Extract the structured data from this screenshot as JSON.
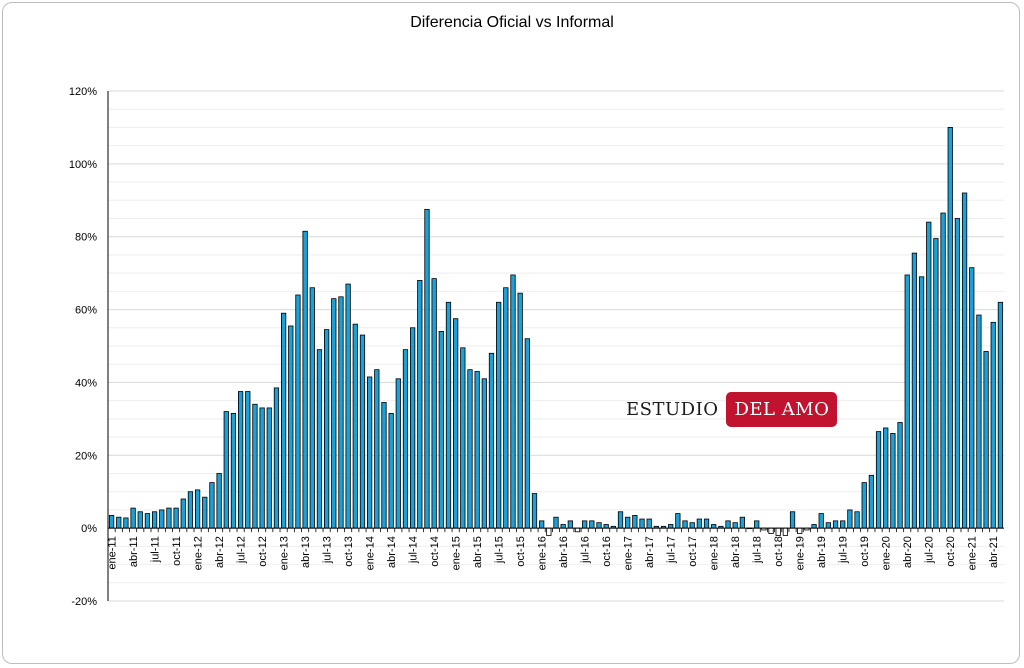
{
  "chart_data": {
    "type": "bar",
    "title": "Diferencia Oficial vs Informal",
    "bar_color": "#1ba0d8",
    "negative_bar_color": "#ffffff",
    "ylim": [
      -20,
      120
    ],
    "yticks": [
      "-20%",
      "0%",
      "20%",
      "40%",
      "60%",
      "80%",
      "100%",
      "120%"
    ],
    "grid": true,
    "start": "ene-11",
    "tick_labels": [
      "ene-11",
      "abr-11",
      "jul-11",
      "oct-11",
      "ene-12",
      "abr-12",
      "jul-12",
      "oct-12",
      "ene-13",
      "abr-13",
      "jul-13",
      "oct-13",
      "ene-14",
      "abr-14",
      "jul-14",
      "oct-14",
      "ene-15",
      "abr-15",
      "jul-15",
      "oct-15",
      "ene-16",
      "abr-16",
      "jul-16",
      "oct-16",
      "ene-17",
      "abr-17",
      "jul-17",
      "oct-17",
      "ene-18",
      "abr-18",
      "jul-18",
      "oct-18",
      "ene-19",
      "abr-19",
      "jul-19",
      "oct-19",
      "ene-20",
      "abr-20",
      "jul-20",
      "oct-20",
      "ene-21",
      "abr-21"
    ],
    "values": [
      3.5,
      3.0,
      2.8,
      5.5,
      4.5,
      4.0,
      4.5,
      5.0,
      5.5,
      5.5,
      8.0,
      10.0,
      10.5,
      8.5,
      12.5,
      15.0,
      32.0,
      31.5,
      37.5,
      37.5,
      34.0,
      33.0,
      33.0,
      38.5,
      59.0,
      55.5,
      64.0,
      81.5,
      66.0,
      49.0,
      54.5,
      63.0,
      63.5,
      67.0,
      56.0,
      53.0,
      41.5,
      43.5,
      34.5,
      31.5,
      41.0,
      49.0,
      55.0,
      68.0,
      87.5,
      68.5,
      54.0,
      62.0,
      57.5,
      49.5,
      43.5,
      43.0,
      41.0,
      48.0,
      62.0,
      66.0,
      69.5,
      64.5,
      52.0,
      9.5,
      2.0,
      -2.0,
      3.0,
      1.0,
      2.0,
      -1.0,
      2.0,
      2.0,
      1.5,
      1.0,
      0.5,
      4.5,
      3.0,
      3.5,
      2.5,
      2.5,
      0.5,
      0.5,
      1.0,
      4.0,
      2.0,
      1.5,
      2.5,
      2.5,
      1.0,
      0.5,
      2.0,
      1.5,
      3.0,
      0.0,
      2.0,
      -0.5,
      -1.5,
      -2.0,
      -2.0,
      4.5,
      -1.5,
      -0.5,
      1.0,
      4.0,
      1.5,
      2.0,
      2.0,
      5.0,
      4.5,
      12.5,
      14.5,
      26.5,
      27.5,
      26.0,
      29.0,
      69.5,
      75.5,
      69.0,
      84.0,
      79.5,
      86.5,
      110.0,
      85.0,
      92.0,
      71.5,
      58.5,
      48.5,
      56.5,
      62.0
    ]
  },
  "logo": {
    "part1": "ESTUDIO",
    "part2": "DEL AMO"
  }
}
